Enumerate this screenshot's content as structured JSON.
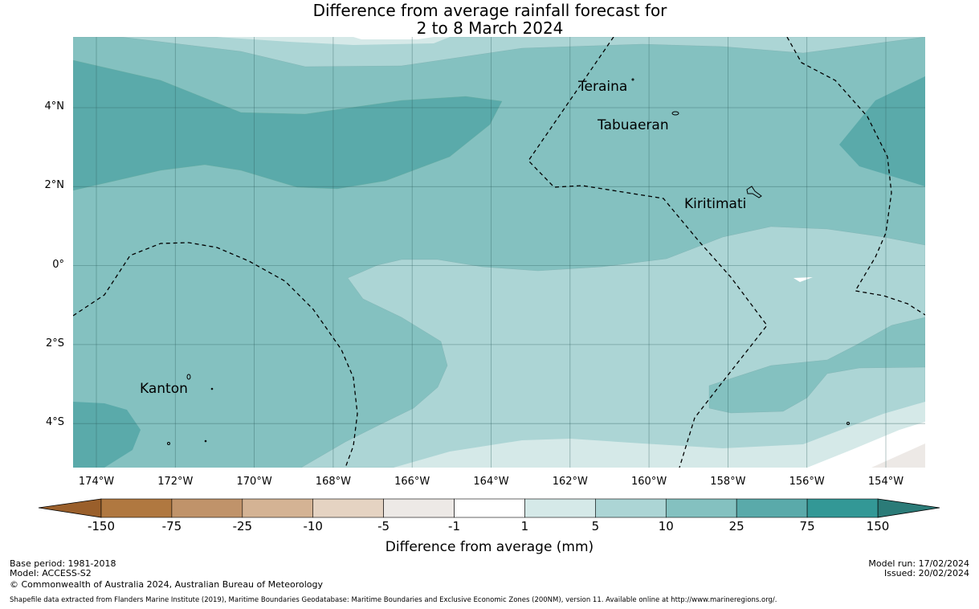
{
  "title": {
    "line1": "Difference from average rainfall forecast for",
    "line2": "2 to 8 March 2024"
  },
  "map": {
    "lat_ticks": [
      "4°N",
      "2°N",
      "0°",
      "2°S",
      "4°S"
    ],
    "lon_ticks": [
      "174°W",
      "172°W",
      "170°W",
      "168°W",
      "166°W",
      "164°W",
      "162°W",
      "160°W",
      "158°W",
      "156°W",
      "154°W"
    ],
    "places": [
      "Teraina",
      "Tabuaeran",
      "Kiritimati",
      "Kanton"
    ]
  },
  "colorbar": {
    "label": "Difference from average (mm)",
    "ticks": [
      "-150",
      "-75",
      "-25",
      "-10",
      "-5",
      "-1",
      "1",
      "5",
      "10",
      "25",
      "75",
      "150"
    ],
    "colors": [
      "#b07840",
      "#c0936a",
      "#d4b394",
      "#e5d3c2",
      "#ede9e6",
      "#ffffff",
      "#d5e9e8",
      "#acd5d5",
      "#84c1c0",
      "#5aaaaa",
      "#339896"
    ],
    "under_color": "#9a5f2b",
    "over_color": "#2b7b78"
  },
  "footer": {
    "base_period": "Base period: 1981-2018",
    "model": "Model: ACCESS-S2",
    "copyright": "© Commonwealth of Australia 2024, Australian Bureau of Meteorology",
    "model_run": "Model run: 17/02/2024",
    "issued": "Issued: 20/02/2024",
    "shapefile": "Shapefile data extracted from Flanders Marine Institute (2019), Maritime Boundaries Geodatabase: Maritime Boundaries and Exclusive Economic Zones (200NM), version 11. Available online at http://www.marineregions.org/."
  }
}
